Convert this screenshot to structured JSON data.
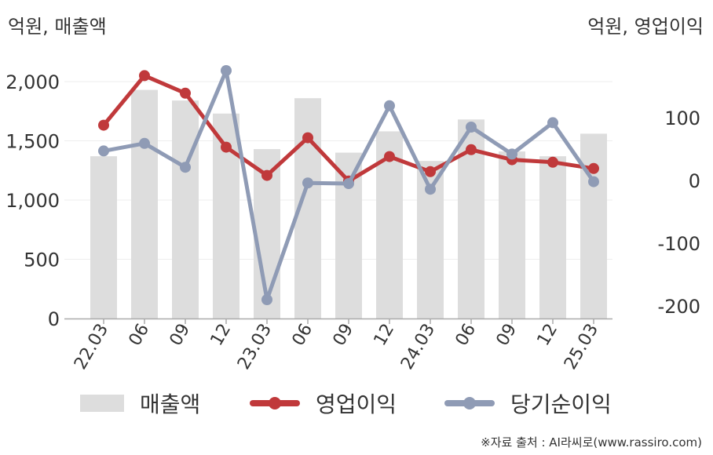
{
  "units": {
    "left": "억원, 매출액",
    "right": "억원, 영업이익"
  },
  "legend": {
    "revenue": "매출액",
    "operating": "영업이익",
    "net": "당기순이익"
  },
  "source": "※자료 출처 : AI라씨로(www.rassiro.com)",
  "colors": {
    "revenue": "#dddddd",
    "operating": "#c0393b",
    "net": "#8f9bb5"
  },
  "chart_data": {
    "type": "bar",
    "categories": [
      "22.03",
      "06",
      "09",
      "12",
      "23.03",
      "06",
      "09",
      "12",
      "24.03",
      "06",
      "09",
      "12",
      "25.03"
    ],
    "left_axis": {
      "ylim": [
        0,
        2200
      ],
      "ticks": [
        0,
        500,
        1000,
        1500,
        2000
      ],
      "tick_labels": [
        "0",
        "500",
        "1,000",
        "1,500",
        "2,000"
      ]
    },
    "right_axis": {
      "ylim": [
        -220,
        220
      ],
      "ticks": [
        -200,
        -100,
        0,
        100
      ],
      "tick_labels": [
        "-200",
        "-100",
        "0",
        "100"
      ]
    },
    "series": [
      {
        "name": "매출액",
        "type": "bar",
        "axis": "left",
        "values": [
          1370,
          1930,
          1840,
          1730,
          1430,
          1860,
          1400,
          1580,
          1330,
          1680,
          1410,
          1370,
          1560
        ]
      },
      {
        "name": "영업이익",
        "type": "line",
        "axis": "right",
        "values": [
          88,
          167,
          139,
          53,
          8,
          68,
          -1,
          38,
          14,
          49,
          33,
          29,
          19
        ]
      },
      {
        "name": "당기순이익",
        "type": "line",
        "axis": "right",
        "values": [
          47,
          59,
          21,
          175,
          -190,
          -4,
          -5,
          119,
          -14,
          85,
          42,
          92,
          -2
        ]
      }
    ],
    "grid": true,
    "legend_position": "bottom"
  }
}
